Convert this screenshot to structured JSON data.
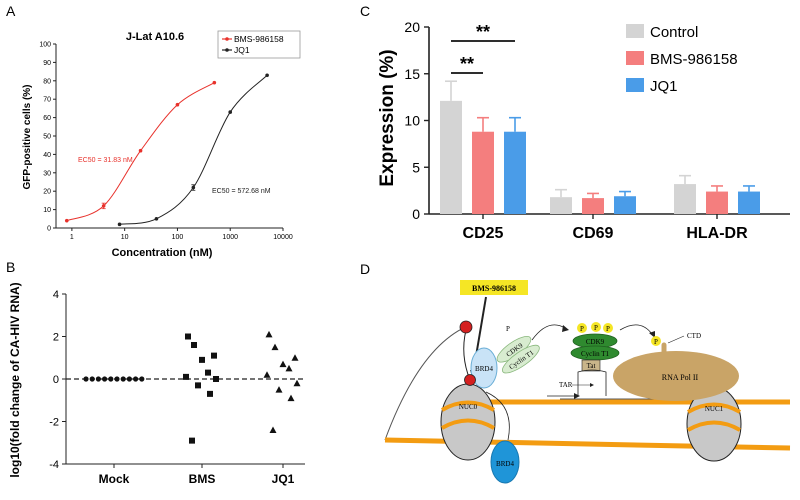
{
  "panels": {
    "a": "A",
    "b": "B",
    "c": "C",
    "d": "D"
  },
  "colors": {
    "red": "#e8312b",
    "black": "#222222",
    "control": "#d4d4d4",
    "bms": "#f47e7e",
    "jq1": "#4a9ce8",
    "orange": "#f39c12",
    "nucleosome": "#c8c8c8",
    "brd4_light": "#c9e3f7",
    "brd4_dark": "#1f95d8",
    "cdk9_light": "#d8ecd0",
    "cdk9_dark": "#2f8a2f",
    "polii": "#c9a467",
    "phospho": "#f5e625",
    "nucleus_line": "#555555"
  },
  "chart_data": [
    {
      "id": "A",
      "type": "line",
      "title": "J-Lat A10.6",
      "xlabel": "Concentration (nM)",
      "ylabel": "GFP-positive cells (%)",
      "x_scale": "log",
      "xlim": [
        0.5,
        10000
      ],
      "ylim": [
        0,
        100
      ],
      "x_ticks": [
        1,
        10,
        100,
        1000,
        10000
      ],
      "x_tick_labels": [
        "1",
        "10",
        "100",
        "1000",
        "10000"
      ],
      "y_ticks": [
        0,
        10,
        20,
        30,
        40,
        50,
        60,
        70,
        80,
        90,
        100
      ],
      "y_tick_labels": [
        "0",
        "10",
        "20",
        "30",
        "40",
        "50",
        "60",
        "70",
        "80",
        "90",
        "100"
      ],
      "legend_position": "top-right",
      "series": [
        {
          "name": "BMS-986158",
          "color": "#e8312b",
          "x": [
            0.8,
            4,
            20,
            100,
            500
          ],
          "y": [
            4,
            12,
            42,
            67,
            79
          ],
          "err": [
            0,
            1.5,
            0,
            0,
            0
          ],
          "ec50_label": "EC50 = 31.83 nM"
        },
        {
          "name": "JQ1",
          "color": "#222222",
          "x": [
            8,
            40,
            200,
            1000,
            5000
          ],
          "y": [
            2,
            5,
            22,
            63,
            83
          ],
          "err": [
            0,
            0,
            1.5,
            0,
            0
          ],
          "ec50_label": "EC50 = 572.68 nM"
        }
      ]
    },
    {
      "id": "B",
      "type": "scatter",
      "ylabel": "log10(fold change of CA-HIV RNA)",
      "categories": [
        "Mock",
        "BMS",
        "JQ1"
      ],
      "ylim": [
        -4,
        4
      ],
      "y_ticks": [
        -4,
        -2,
        0,
        2,
        4
      ],
      "y_tick_labels": [
        "-4",
        "-2",
        "0",
        "2",
        "4"
      ],
      "reference_line": 0,
      "series": [
        {
          "category": "Mock",
          "marker": "circle",
          "values": [
            0,
            0,
            0,
            0,
            0,
            0,
            0,
            0,
            0,
            0
          ]
        },
        {
          "category": "BMS",
          "marker": "square",
          "values": [
            2.0,
            1.6,
            1.1,
            0.9,
            0.3,
            0.1,
            0.0,
            -0.3,
            -0.7,
            -2.9
          ]
        },
        {
          "category": "JQ1",
          "marker": "triangle",
          "values": [
            2.1,
            1.5,
            1.0,
            0.7,
            0.5,
            0.2,
            -0.2,
            -0.5,
            -0.9,
            -2.4
          ]
        }
      ]
    },
    {
      "id": "C",
      "type": "bar",
      "ylabel": "Expression (%)",
      "categories": [
        "CD25",
        "CD69",
        "HLA-DR"
      ],
      "ylim": [
        0,
        20
      ],
      "y_ticks": [
        0,
        5,
        10,
        15,
        20
      ],
      "y_tick_labels": [
        "0",
        "5",
        "10",
        "15",
        "20"
      ],
      "legend_position": "top-right",
      "series": [
        {
          "name": "Control",
          "color": "#d4d4d4",
          "values": [
            12.1,
            1.8,
            3.2
          ],
          "err": [
            2.1,
            0.8,
            0.9
          ]
        },
        {
          "name": "BMS-986158",
          "color": "#f47e7e",
          "values": [
            8.8,
            1.7,
            2.4
          ],
          "err": [
            1.5,
            0.5,
            0.6
          ]
        },
        {
          "name": "JQ1",
          "color": "#4a9ce8",
          "values": [
            8.8,
            1.9,
            2.4
          ],
          "err": [
            1.5,
            0.5,
            0.6
          ]
        }
      ],
      "significance": [
        {
          "label": "**",
          "from": "Control",
          "to": "BMS-986158",
          "category": "CD25"
        },
        {
          "label": "**",
          "from": "Control",
          "to": "JQ1",
          "category": "CD25"
        }
      ]
    }
  ],
  "diagram": {
    "drug_label": "BMS-986158",
    "brd4": "BRD4",
    "nuc0": "NUC0",
    "nuc1": "NUC1",
    "cdk9": "CDK9",
    "cyclin": "Cyclin T1",
    "tat": "Tat",
    "tar": "TAR",
    "p": "P",
    "ctd": "CTD",
    "polii": "RNA Pol II"
  }
}
